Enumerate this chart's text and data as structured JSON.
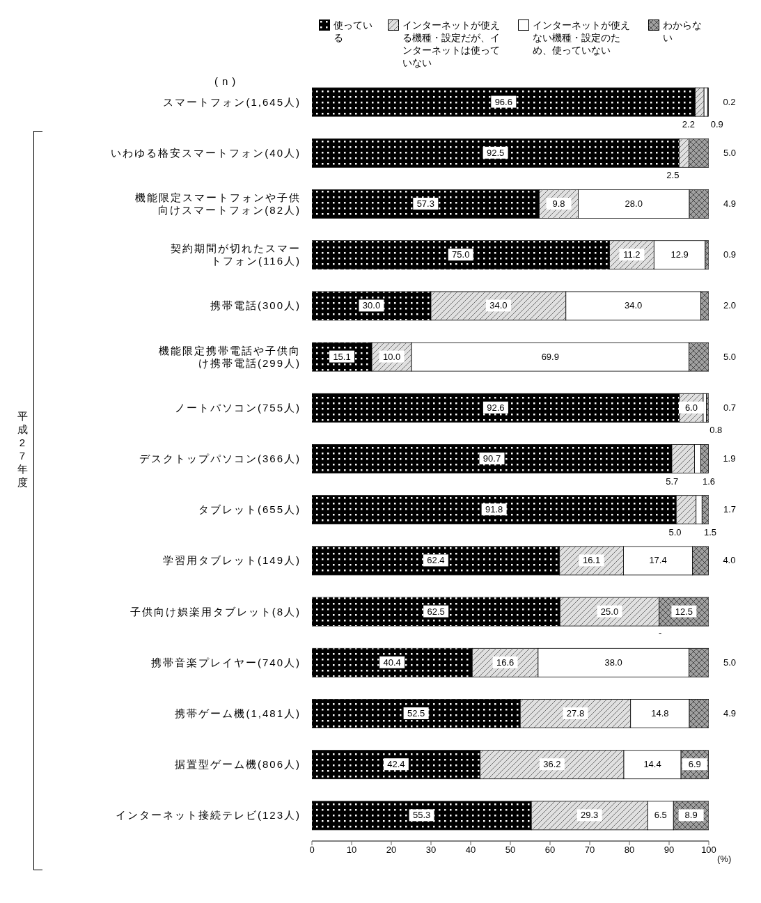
{
  "chart_data": {
    "type": "bar",
    "orientation": "horizontal",
    "stacked": true,
    "xlabel": "(%)",
    "annotations": [
      "(n)",
      "平成27年度",
      "-"
    ],
    "categories": [
      "スマートフォン(1,645人)",
      "いわゆる格安スマートフォン(40人)",
      "機能限定スマートフォンや子供向けスマートフォン(82人)",
      "契約期間が切れたスマートフォン(116人)",
      "携帯電話(300人)",
      "機能限定携帯電話や子供向け携帯電話(299人)",
      "ノートパソコン(755人)",
      "デスクトップパソコン(366人)",
      "タブレット(655人)",
      "学習用タブレット(149人)",
      "子供向け娯楽用タブレット(8人)",
      "携帯音楽プレイヤー(740人)",
      "携帯ゲーム機(1,481人)",
      "据置型ゲーム機(806人)",
      "インターネット接続テレビ(123人)"
    ],
    "series": [
      {
        "name": "使っている",
        "color": "#000000",
        "values": [
          96.6,
          92.5,
          57.3,
          75.0,
          30.0,
          15.1,
          92.6,
          90.7,
          91.8,
          62.4,
          62.5,
          40.4,
          52.5,
          42.4,
          55.3
        ],
        "value_labels": [
          "96.6",
          "92.5",
          "57.3",
          "75.0",
          "30.0",
          "15.1",
          "92.6",
          "90.7",
          "91.8",
          "62.4",
          "62.5",
          "40.4",
          "52.5",
          "42.4",
          "55.3"
        ]
      },
      {
        "name": "インターネットが使える機種・設定だが、インターネットは使っていない",
        "color": "#e0e0e0",
        "values": [
          2.2,
          2.5,
          9.8,
          11.2,
          34.0,
          10.0,
          6.0,
          5.7,
          5.0,
          16.1,
          25.0,
          16.6,
          27.8,
          36.2,
          29.3
        ],
        "value_labels": [
          "2.2",
          "2.5",
          "9.8",
          "11.2",
          "34.0",
          "10.0",
          "6.0",
          "5.7",
          "5.0",
          "16.1",
          "25.0",
          "16.6",
          "27.8",
          "36.2",
          "29.3"
        ]
      },
      {
        "name": "インターネットが使えない機種・設定のため、使っていない",
        "color": "#ffffff",
        "values": [
          0.9,
          null,
          28.0,
          12.9,
          34.0,
          69.9,
          0.8,
          1.6,
          1.5,
          17.4,
          null,
          38.0,
          14.8,
          14.4,
          6.5
        ],
        "value_labels": [
          "0.9",
          null,
          "28.0",
          "12.9",
          "34.0",
          "69.9",
          "0.8",
          "1.6",
          "1.5",
          "17.4",
          null,
          "38.0",
          "14.8",
          "14.4",
          "6.5"
        ]
      },
      {
        "name": "わからない",
        "color": "#a0a0a0",
        "values": [
          0.2,
          5.0,
          4.9,
          0.9,
          2.0,
          5.0,
          0.7,
          1.9,
          1.7,
          4.0,
          12.5,
          5.0,
          4.9,
          6.9,
          8.9
        ],
        "value_labels": [
          "0.2",
          "5.0",
          "4.9",
          "0.9",
          "2.0",
          "5.0",
          "0.7",
          "1.9",
          "1.7",
          "4.0",
          "12.5",
          "5.0",
          "4.9",
          "6.9",
          "8.9"
        ]
      }
    ],
    "xlim": [
      0,
      100
    ],
    "xticks": [
      0,
      10,
      20,
      30,
      40,
      50,
      60,
      70,
      80,
      90,
      100
    ],
    "grid": false,
    "legend": "top"
  }
}
